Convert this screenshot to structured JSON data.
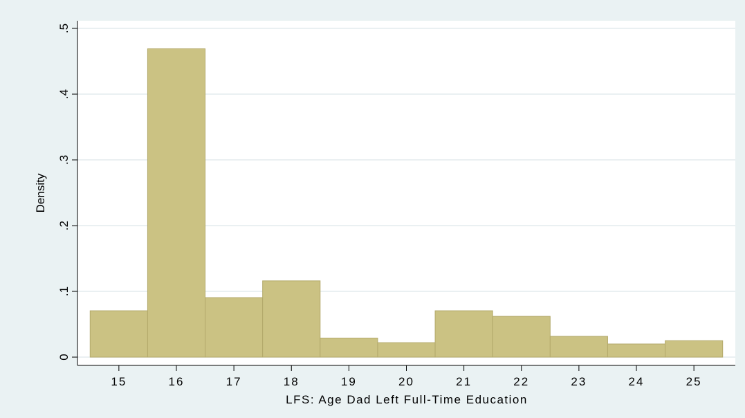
{
  "chart_data": {
    "type": "histogram",
    "x_label": "LFS: Age Dad Left Full-Time Education",
    "y_label": "Density",
    "bins": [
      14.5,
      15.5,
      16.5,
      17.5,
      18.5,
      19.5,
      20.5,
      21.5,
      22.5,
      23.5,
      24.5,
      25.5
    ],
    "values": [
      0.0705,
      0.469,
      0.0905,
      0.116,
      0.029,
      0.022,
      0.0705,
      0.062,
      0.0316,
      0.02,
      0.025
    ],
    "color": "#cbc283",
    "xlim": [
      14.28,
      25.72
    ],
    "xticks": [
      15,
      16,
      17,
      18,
      19,
      20,
      21,
      22,
      23,
      24,
      25
    ],
    "ylim": [
      -0.0126,
      0.5116
    ],
    "yticks": [
      0,
      {
        "value": 0.1,
        "label": ".1"
      },
      {
        "value": 0.2,
        "label": ".2"
      },
      {
        "value": 0.3,
        "label": ".3"
      },
      {
        "value": 0.4,
        "label": ".4"
      },
      {
        "value": 0.5,
        "label": ".5"
      }
    ],
    "grid": true
  }
}
